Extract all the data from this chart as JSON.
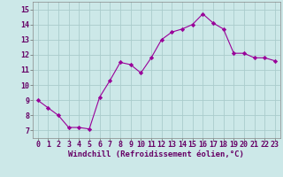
{
  "x": [
    0,
    1,
    2,
    3,
    4,
    5,
    6,
    7,
    8,
    9,
    10,
    11,
    12,
    13,
    14,
    15,
    16,
    17,
    18,
    19,
    20,
    21,
    22,
    23
  ],
  "y": [
    9.0,
    8.5,
    8.0,
    7.2,
    7.2,
    7.1,
    9.2,
    10.3,
    11.5,
    11.35,
    10.8,
    11.8,
    13.0,
    13.5,
    13.7,
    14.0,
    14.7,
    14.1,
    13.7,
    12.1,
    12.1,
    11.8,
    11.8,
    11.6
  ],
  "line_color": "#990099",
  "marker": "D",
  "marker_size": 2.2,
  "bg_color": "#cce8e8",
  "grid_color": "#aacccc",
  "xlabel": "Windchill (Refroidissement éolien,°C)",
  "xlabel_color": "#660066",
  "xlabel_fontsize": 6.5,
  "tick_color": "#660066",
  "tick_fontsize": 6.0,
  "xlim": [
    -0.5,
    23.5
  ],
  "ylim": [
    6.5,
    15.5
  ],
  "yticks": [
    7,
    8,
    9,
    10,
    11,
    12,
    13,
    14,
    15
  ],
  "xticks": [
    0,
    1,
    2,
    3,
    4,
    5,
    6,
    7,
    8,
    9,
    10,
    11,
    12,
    13,
    14,
    15,
    16,
    17,
    18,
    19,
    20,
    21,
    22,
    23
  ]
}
